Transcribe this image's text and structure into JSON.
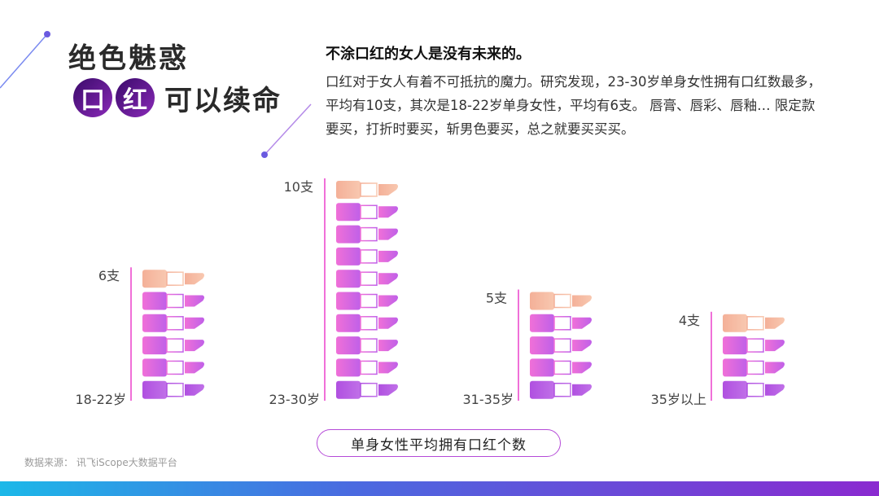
{
  "slide": {
    "title_line1": "绝色魅惑",
    "title_char1": "口",
    "title_char2": "红",
    "title_rest": "可以续命",
    "headline": "不涂口红的女人是没有未来的。",
    "description": "口红对于女人有着不可抵抗的魔力。研究发现，23-30岁单身女性拥有口红数最多，平均有10支，其次是18-22岁单身女性，平均有6支。 唇膏、唇彩、唇釉… 限定款要买，打折时要买，斩男色要买，总之就要买买买。",
    "caption": "单身女性平均拥有口红个数",
    "source": "数据来源： 讯飞iScope大数据平台"
  },
  "chart_data": {
    "type": "bar",
    "title": "单身女性平均拥有口红个数",
    "categories": [
      "18-22岁",
      "23-30岁",
      "31-35岁",
      "35岁以上"
    ],
    "values": [
      6,
      10,
      5,
      4
    ],
    "value_labels": [
      "6支",
      "10支",
      "5支",
      "4支"
    ],
    "unit": "支"
  },
  "colors": {
    "accent_purple": "#8a2ad0",
    "lipstick_top": "#f4b8a0",
    "lipstick_pink": "#f070d8",
    "lipstick_purple": "#b858e0",
    "caption_border": "#b54ad8"
  }
}
